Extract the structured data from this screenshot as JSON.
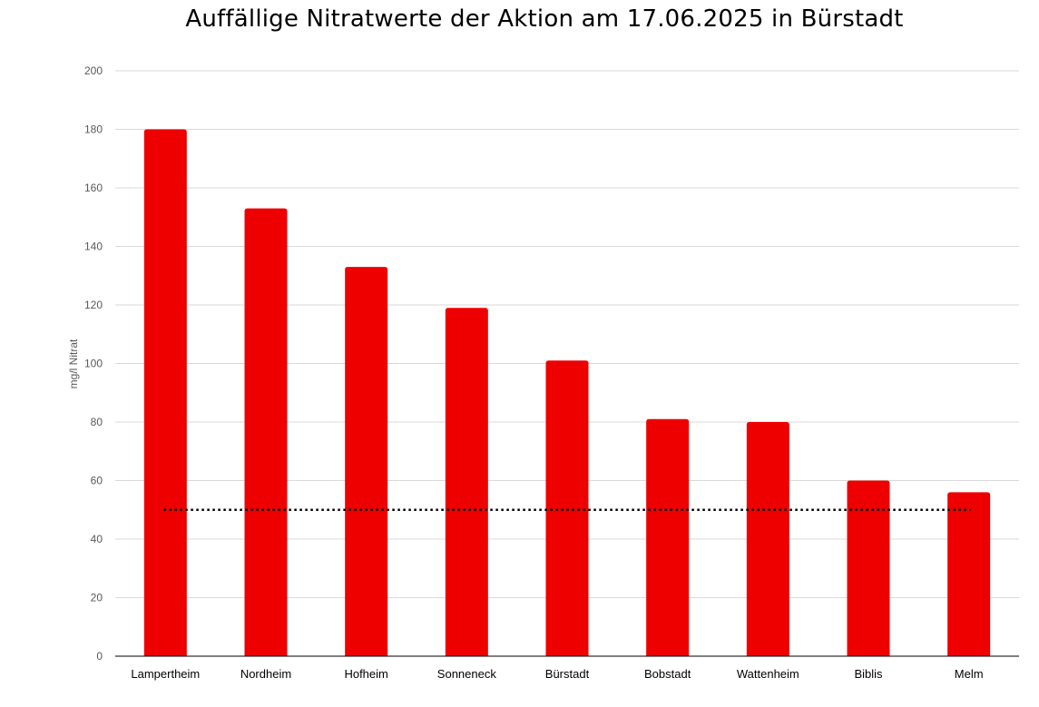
{
  "chart_data": {
    "type": "bar",
    "title": "Auffällige Nitratwerte der Aktion am 17.06.2025  in Bürstadt",
    "xlabel": "",
    "ylabel": "mg/l Nitrat",
    "ylim": [
      0,
      200
    ],
    "yticks": [
      0,
      20,
      40,
      60,
      80,
      100,
      120,
      140,
      160,
      180,
      200
    ],
    "categories": [
      "Lampertheim",
      "Nordheim",
      "Hofheim",
      "Sonneneck",
      "Bürstadt",
      "Bobstadt",
      "Wattenheim",
      "Biblis",
      "Melm"
    ],
    "values": [
      180,
      153,
      133,
      119,
      101,
      81,
      80,
      60,
      56
    ],
    "reference_line": {
      "value": 50,
      "style": "dotted"
    },
    "grid": true,
    "colors": {
      "bar": "#ee0000",
      "grid": "#d9d9d9",
      "axis": "#000000",
      "reference_line": "#000000"
    }
  }
}
